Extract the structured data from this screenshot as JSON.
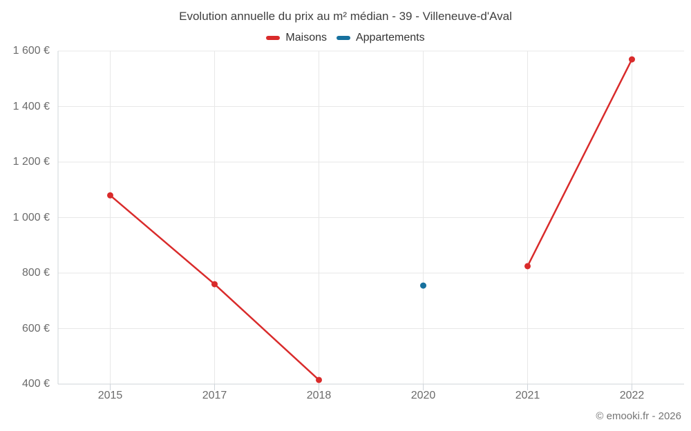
{
  "chart_data": {
    "type": "line",
    "title": "Evolution annuelle du prix au m² médian - 39 - Villeneuve-d'Aval",
    "xlabel": "",
    "ylabel": "",
    "categories": [
      "2015",
      "2017",
      "2018",
      "2020",
      "2021",
      "2022"
    ],
    "series": [
      {
        "name": "Maisons",
        "color": "#d92b2b",
        "values": [
          1080,
          760,
          415,
          null,
          825,
          1570
        ]
      },
      {
        "name": "Appartements",
        "color": "#17719e",
        "values": [
          null,
          null,
          null,
          755,
          null,
          null
        ]
      }
    ],
    "ylim": [
      400,
      1600
    ],
    "ytick_step": 200,
    "ytick_labels": [
      "400 €",
      "600 €",
      "800 €",
      "1 000 €",
      "1 200 €",
      "1 400 €",
      "1 600 €"
    ],
    "grid": "on",
    "legend_position": "top"
  },
  "footer": {
    "credit": "© emooki.fr - 2026"
  },
  "colors": {
    "maisons": "#d92b2b",
    "appartements": "#17719e",
    "gridline": "#e7e7e7",
    "axis_line": "#cfd4da",
    "title_text": "#404040",
    "axis_text": "#6b6b6b",
    "credit_text": "#757575"
  }
}
